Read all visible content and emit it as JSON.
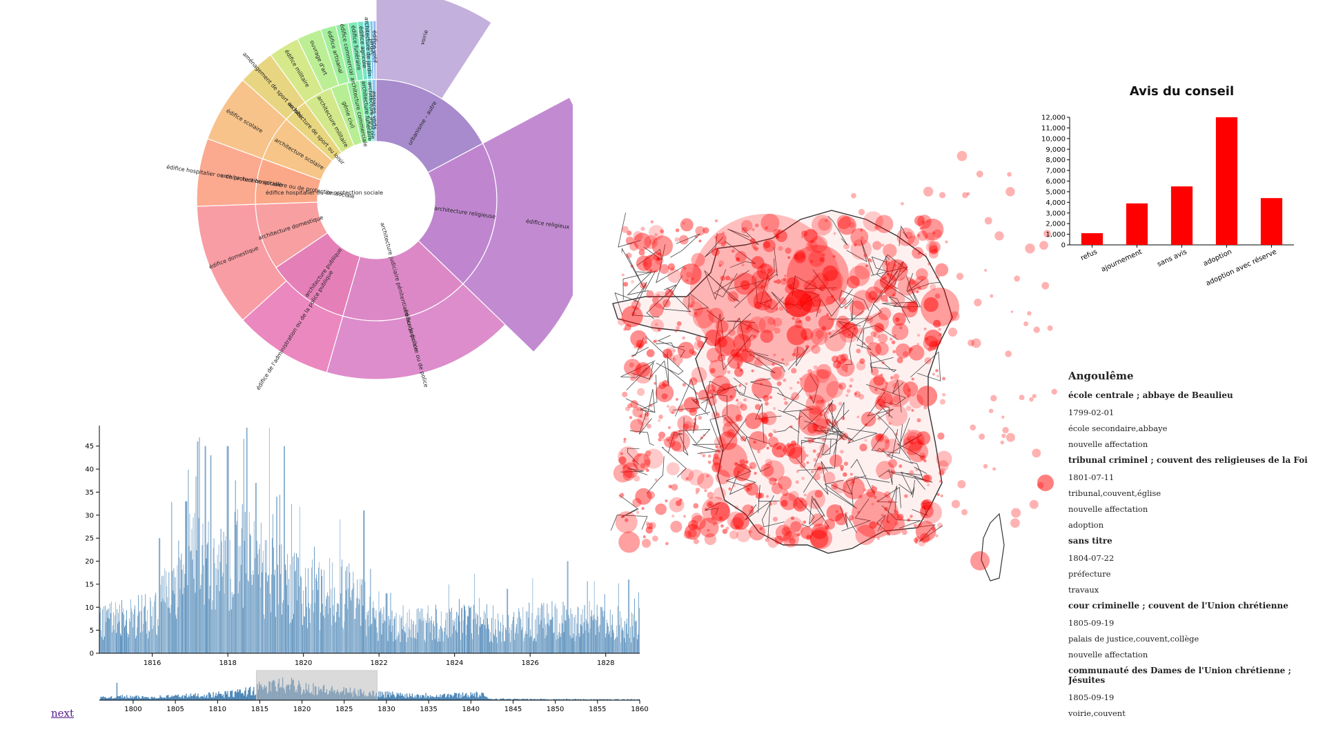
{
  "sunburst": {
    "center_label": "édifice hospitalier ou de protection sociale",
    "inner": [
      {
        "label": "urbanisme – autre",
        "color": "#a78bcc"
      },
      {
        "label": "architecture religieuse",
        "color": "#bf86cf"
      },
      {
        "label": "architecture judiciaire pénitentiaire ou de police",
        "color": "#dc88c6"
      },
      {
        "label": "architecture publique",
        "color": "#e57fb8"
      },
      {
        "label": "architecture domestique",
        "color": "#f79fa1"
      },
      {
        "label": "architecture hospitalière ou de protection sociale",
        "color": "#fba889"
      },
      {
        "label": "architecture scolaire",
        "color": "#f6c587"
      },
      {
        "label": "architecture de sport ou loisir",
        "color": "#e8d67f"
      },
      {
        "label": "architecture militaire",
        "color": "#d2e88a"
      },
      {
        "label": "génie civil",
        "color": "#b7ee94"
      },
      {
        "label": "architecture commerciale",
        "color": "#9aee9e"
      },
      {
        "label": "architecture funéraire",
        "color": "#7ee8b2"
      },
      {
        "label": "architecture agricole",
        "color": "#6fdcd0"
      },
      {
        "label": "espaces verts",
        "color": "#8cc8f0"
      }
    ],
    "outer": [
      {
        "label": "voirie",
        "color": "#c3b0dd"
      },
      {
        "label": "édifice religieux",
        "color": "#c28bd1"
      },
      {
        "label": "édifice judiciaire ou de police",
        "color": "#dd8dcb"
      },
      {
        "label": "édifice de l'administration ou de la police publique",
        "color": "#eb88bf"
      },
      {
        "label": "édifice domestique",
        "color": "#f99da4"
      },
      {
        "label": "édifice hospitalier ou de protection sociale",
        "color": "#fba98f"
      },
      {
        "label": "édifice scolaire",
        "color": "#f7c38a"
      },
      {
        "label": "aménagement de sport ou loisir",
        "color": "#e8d581"
      },
      {
        "label": "édifice militaire",
        "color": "#d5e98a"
      },
      {
        "label": "ouvrage d'art",
        "color": "#bcef95"
      },
      {
        "label": "édifice artisanal",
        "color": "#a4f09d"
      },
      {
        "label": "édifice commercial",
        "color": "#90eea6"
      },
      {
        "label": "édifice funéraire",
        "color": "#80eab5"
      },
      {
        "label": "édifice agricole",
        "color": "#77e3c6"
      },
      {
        "label": "architecture de jardin",
        "color": "#72d8d8"
      },
      {
        "label": "jardin",
        "color": "#7ec7ea"
      },
      {
        "label": "édifice votif",
        "color": "#95b8f0"
      }
    ]
  },
  "chart_data": [
    {
      "type": "bar",
      "title": "Avis du conseil",
      "categories": [
        "refus",
        "ajournement",
        "sans avis",
        "adoption",
        "adoption avec réserve"
      ],
      "values": [
        1100,
        3900,
        5500,
        12100,
        4400
      ],
      "ylim": [
        0,
        12000
      ],
      "yticks": [
        "0",
        "1,000",
        "2,000",
        "3,000",
        "4,000",
        "5,000",
        "6,000",
        "7,000",
        "8,000",
        "9,000",
        "10,000",
        "11,000",
        "12,000"
      ],
      "bar_color": "#ff0000"
    },
    {
      "type": "bar",
      "title": "",
      "xlabel": "",
      "ylabel": "",
      "x_range": [
        1814.6,
        1828.9
      ],
      "ylim": [
        0,
        49
      ],
      "xticks": [
        "1816",
        "1818",
        "1820",
        "1822",
        "1824",
        "1826",
        "1828"
      ],
      "yticks": [
        "0",
        "5",
        "10",
        "15",
        "20",
        "25",
        "30",
        "35",
        "40",
        "45"
      ],
      "bar_color": "#4682b4",
      "anchors": [
        [
          1814.6,
          7
        ],
        [
          1815.0,
          8
        ],
        [
          1815.5,
          9
        ],
        [
          1816.0,
          9
        ],
        [
          1816.2,
          12
        ],
        [
          1816.5,
          16
        ],
        [
          1816.9,
          20
        ],
        [
          1817.3,
          24
        ],
        [
          1817.6,
          19
        ],
        [
          1818.0,
          21
        ],
        [
          1818.4,
          23
        ],
        [
          1818.8,
          19
        ],
        [
          1819.2,
          22
        ],
        [
          1819.6,
          18
        ],
        [
          1820.0,
          15
        ],
        [
          1820.5,
          14
        ],
        [
          1821.0,
          15
        ],
        [
          1821.4,
          13
        ],
        [
          1821.9,
          8
        ],
        [
          1822.5,
          6
        ],
        [
          1823.0,
          7
        ],
        [
          1823.5,
          6
        ],
        [
          1824.0,
          7
        ],
        [
          1824.5,
          8
        ],
        [
          1825.0,
          6
        ],
        [
          1825.5,
          7
        ],
        [
          1826.0,
          7
        ],
        [
          1826.5,
          8
        ],
        [
          1827.0,
          7
        ],
        [
          1827.5,
          8
        ],
        [
          1828.0,
          7
        ],
        [
          1828.9,
          6
        ]
      ],
      "peaks": [
        [
          1817.2,
          46
        ],
        [
          1817.4,
          45
        ],
        [
          1817.55,
          43
        ],
        [
          1818.0,
          45
        ],
        [
          1818.5,
          49
        ],
        [
          1818.75,
          37
        ],
        [
          1819.5,
          45
        ],
        [
          1819.3,
          34
        ],
        [
          1821.6,
          31
        ],
        [
          1816.2,
          25
        ],
        [
          1816.9,
          33
        ],
        [
          1827.0,
          20
        ],
        [
          1828.6,
          16
        ],
        [
          1822.2,
          13
        ],
        [
          1825.4,
          14
        ]
      ]
    },
    {
      "type": "area",
      "title": "",
      "x_range": [
        1796,
        1860
      ],
      "xticks": [
        "1800",
        "1805",
        "1810",
        "1815",
        "1820",
        "1825",
        "1830",
        "1835",
        "1840",
        "1845",
        "1850",
        "1855",
        "1860"
      ],
      "brush_range": [
        1814.6,
        1828.9
      ],
      "bar_color": "#4682b4",
      "anchors": [
        [
          1796,
          1
        ],
        [
          1798,
          2
        ],
        [
          1800,
          1.5
        ],
        [
          1802,
          1.5
        ],
        [
          1805,
          2
        ],
        [
          1808,
          2.5
        ],
        [
          1811,
          3
        ],
        [
          1813,
          4
        ],
        [
          1815,
          6
        ],
        [
          1818,
          8
        ],
        [
          1820,
          7
        ],
        [
          1823,
          5
        ],
        [
          1826,
          4
        ],
        [
          1828,
          3.5
        ],
        [
          1830,
          3
        ],
        [
          1833,
          2.5
        ],
        [
          1836,
          2.5
        ],
        [
          1838,
          2.5
        ],
        [
          1840,
          3
        ],
        [
          1841.5,
          2.5
        ],
        [
          1842,
          0.8
        ],
        [
          1845,
          0.5
        ],
        [
          1850,
          0.5
        ],
        [
          1855,
          0.4
        ],
        [
          1860,
          0.4
        ]
      ],
      "peaks": [
        [
          1798.1,
          9
        ],
        [
          1818.3,
          8
        ],
        [
          1817.5,
          7
        ]
      ]
    }
  ],
  "records": {
    "city": "Angoulême",
    "entries": [
      {
        "title": "école centrale ; abbaye de Beaulieu",
        "lines": [
          "1799-02-01",
          "école secondaire,abbaye",
          "nouvelle affectation"
        ]
      },
      {
        "title": "tribunal criminel ; couvent des religieuses de la Foi",
        "lines": [
          "1801-07-11",
          "tribunal,couvent,église",
          "nouvelle affectation",
          "adoption"
        ]
      },
      {
        "title": "sans titre",
        "lines": [
          "1804-07-22",
          "préfecture",
          "travaux"
        ]
      },
      {
        "title": "cour criminelle ; couvent de l'Union chrétienne",
        "lines": [
          "1805-09-19",
          "palais de justice,couvent,collège",
          "nouvelle affectation"
        ]
      },
      {
        "title": "communauté des Dames de l'Union chrétienne ; Jésuites",
        "lines": [
          "1805-09-19",
          "voirie,couvent"
        ]
      }
    ]
  },
  "nav": {
    "next_label": "next"
  },
  "colors": {
    "map_fill": "#ff0000",
    "map_border": "#333333"
  }
}
